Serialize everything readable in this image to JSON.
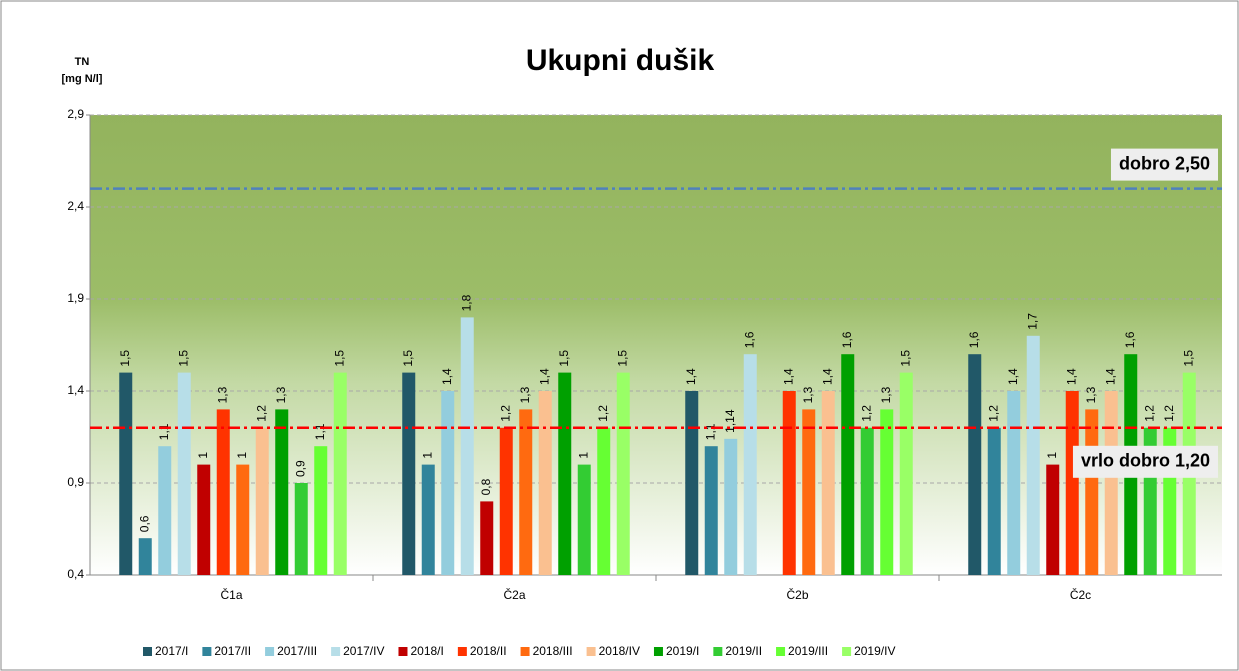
{
  "chart_data": {
    "type": "bar",
    "title": "Ukupni dušik",
    "y_label": [
      "TN",
      "[mg N/l]"
    ],
    "categories": [
      "Č1a",
      "Č2a",
      "Č2b",
      "Č2c"
    ],
    "ylim": [
      0.4,
      2.9
    ],
    "yticks": [
      {
        "value": 0.4,
        "label": "0,4"
      },
      {
        "value": 0.9,
        "label": "0,9"
      },
      {
        "value": 1.4,
        "label": "1,4"
      },
      {
        "value": 1.9,
        "label": "1,9"
      },
      {
        "value": 2.4,
        "label": "2,4"
      },
      {
        "value": 2.9,
        "label": "2,9"
      }
    ],
    "grid": true,
    "legend": "bottom",
    "series": [
      {
        "name": "2017/I",
        "color": "#215868",
        "values": [
          1.5,
          1.5,
          1.4,
          1.6
        ],
        "value_labels": [
          "1,5",
          "1,5",
          "1,4",
          "1,6"
        ]
      },
      {
        "name": "2017/II",
        "color": "#31849b",
        "values": [
          0.6,
          1,
          1.1,
          1.2
        ],
        "value_labels": [
          "0,6",
          "1",
          "1,1",
          "1,2"
        ]
      },
      {
        "name": "2017/III",
        "color": "#93cddd",
        "values": [
          1.1,
          1.4,
          1.14,
          1.4
        ],
        "value_labels": [
          "1,1",
          "1,4",
          "1,14",
          "1,4"
        ]
      },
      {
        "name": "2017/IV",
        "color": "#b7dee8",
        "values": [
          1.5,
          1.8,
          1.6,
          1.7
        ],
        "value_labels": [
          "1,5",
          "1,8",
          "1,6",
          "1,7"
        ]
      },
      {
        "name": "2018/I",
        "color": "#c00000",
        "values": [
          1,
          0.8,
          null,
          1
        ],
        "value_labels": [
          "1",
          "0,8",
          null,
          "1"
        ]
      },
      {
        "name": "2018/II",
        "color": "#ff3300",
        "values": [
          1.3,
          1.2,
          1.4,
          1.4
        ],
        "value_labels": [
          "1,3",
          "1,2",
          "1,4",
          "1,4"
        ]
      },
      {
        "name": "2018/III",
        "color": "#ff6a10",
        "values": [
          1,
          1.3,
          1.3,
          1.3
        ],
        "value_labels": [
          "1",
          "1,3",
          "1,3",
          "1,3"
        ]
      },
      {
        "name": "2018/IV",
        "color": "#fac090",
        "values": [
          1.2,
          1.4,
          1.4,
          1.4
        ],
        "value_labels": [
          "1,2",
          "1,4",
          "1,4",
          "1,4"
        ]
      },
      {
        "name": "2019/I",
        "color": "#00a000",
        "values": [
          1.3,
          1.5,
          1.6,
          1.6
        ],
        "value_labels": [
          "1,3",
          "1,5",
          "1,6",
          "1,6"
        ]
      },
      {
        "name": "2019/II",
        "color": "#33cc33",
        "values": [
          0.9,
          1,
          1.2,
          1.2
        ],
        "value_labels": [
          "0,9",
          "1",
          "1,2",
          "1,2"
        ]
      },
      {
        "name": "2019/III",
        "color": "#66ff33",
        "values": [
          1.1,
          1.2,
          1.3,
          1.2
        ],
        "value_labels": [
          "1,1",
          "1,2",
          "1,3",
          "1,2"
        ]
      },
      {
        "name": "2019/IV",
        "color": "#99ff66",
        "values": [
          1.5,
          1.5,
          1.5,
          1.5
        ],
        "value_labels": [
          "1,5",
          "1,5",
          "1,5",
          "1,5"
        ]
      }
    ],
    "reference_lines": [
      {
        "label": "dobro 2,50",
        "value": 2.5,
        "color": "#4f81bd"
      },
      {
        "label": "vrlo dobro 1,20",
        "value": 1.2,
        "color": "#ff0000"
      }
    ]
  }
}
